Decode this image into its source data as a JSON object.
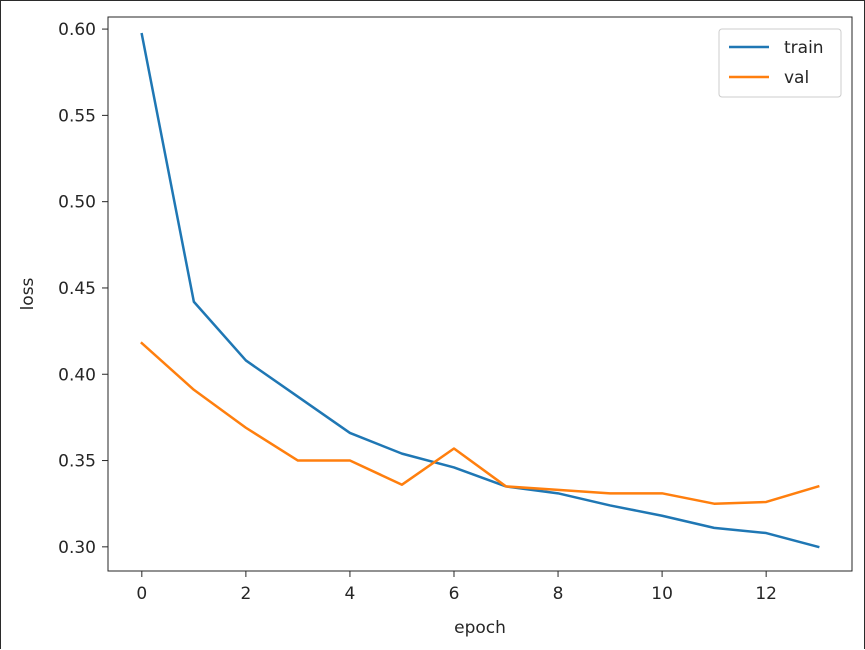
{
  "chart_data": {
    "type": "line",
    "title": "",
    "xlabel": "epoch",
    "ylabel": "loss",
    "x": [
      0,
      1,
      2,
      3,
      4,
      5,
      6,
      7,
      8,
      9,
      10,
      11,
      12,
      13
    ],
    "xlim": [
      -0.65,
      13.65
    ],
    "ylim": [
      0.286,
      0.607
    ],
    "xticks": [
      0,
      2,
      4,
      6,
      8,
      10,
      12
    ],
    "yticks": [
      0.3,
      0.35,
      0.4,
      0.45,
      0.5,
      0.55,
      0.6
    ],
    "xtick_labels": [
      "0",
      "2",
      "4",
      "6",
      "8",
      "10",
      "12"
    ],
    "ytick_labels": [
      "0.30",
      "0.35",
      "0.40",
      "0.45",
      "0.50",
      "0.55",
      "0.60"
    ],
    "grid": false,
    "legend_position": "top-right",
    "series": [
      {
        "name": "train",
        "color": "#1f77b4",
        "values": [
          0.597,
          0.442,
          0.408,
          0.387,
          0.366,
          0.354,
          0.346,
          0.335,
          0.331,
          0.324,
          0.318,
          0.311,
          0.308,
          0.3
        ]
      },
      {
        "name": "val",
        "color": "#ff7f0e",
        "values": [
          0.418,
          0.391,
          0.369,
          0.35,
          0.35,
          0.336,
          0.357,
          0.335,
          0.333,
          0.331,
          0.331,
          0.325,
          0.326,
          0.335
        ]
      }
    ]
  }
}
